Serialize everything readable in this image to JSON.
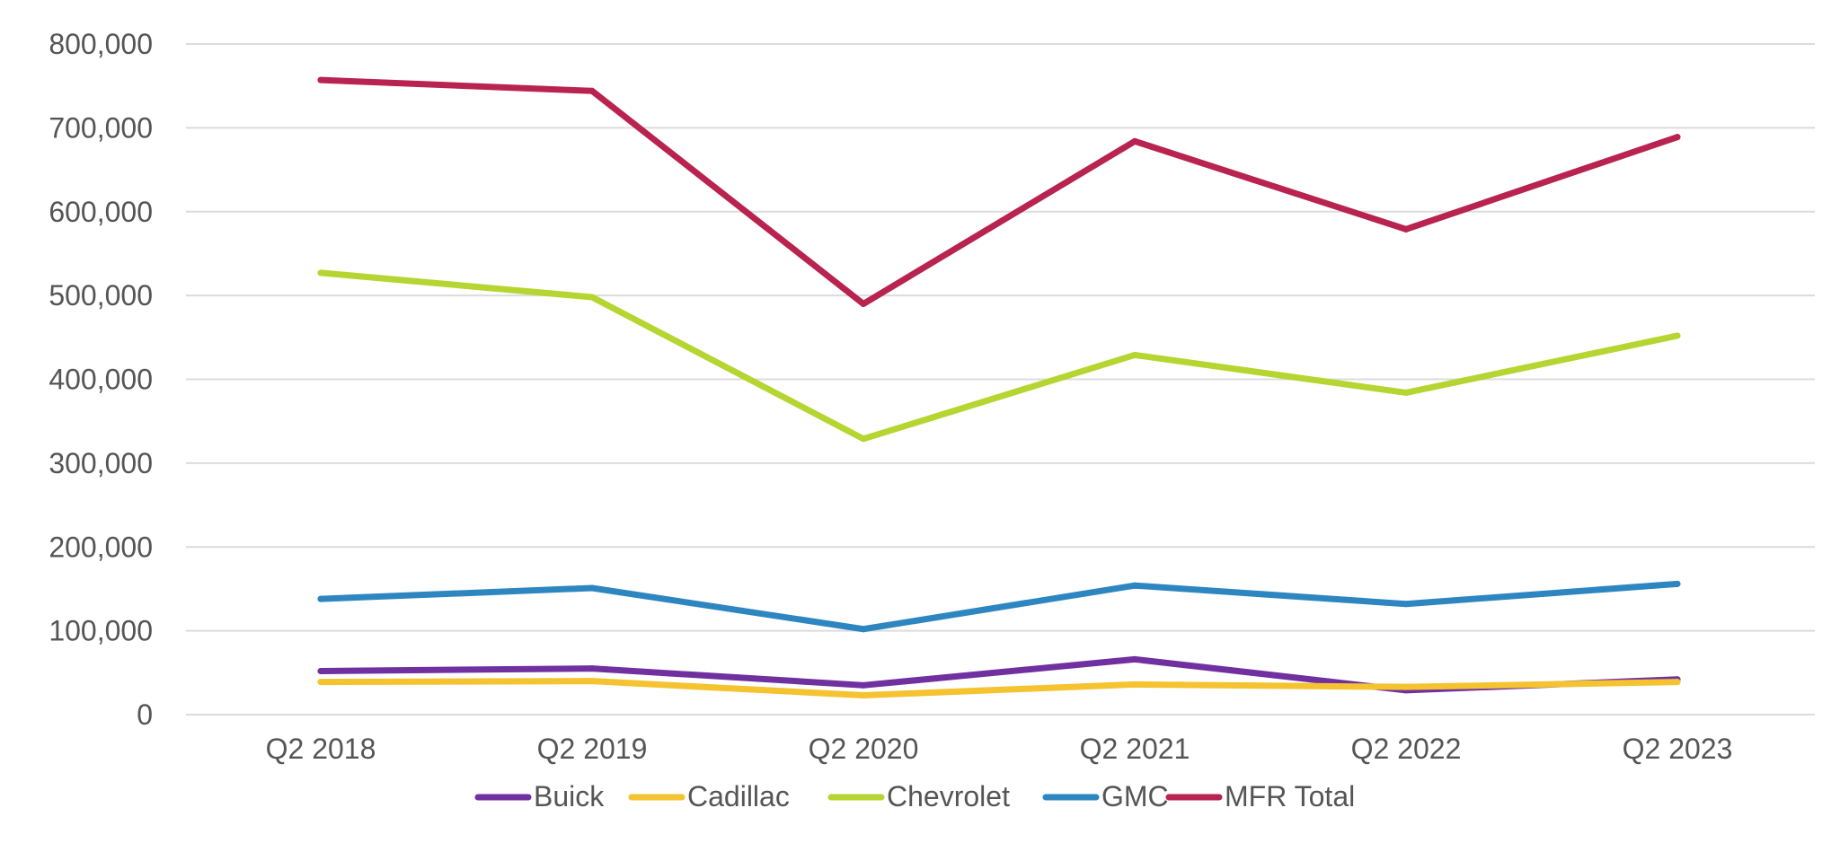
{
  "chart_data": {
    "type": "line",
    "categories": [
      "Q2 2018",
      "Q2 2019",
      "Q2 2020",
      "Q2 2021",
      "Q2 2022",
      "Q2 2023"
    ],
    "ylim": [
      0,
      800000
    ],
    "yticks": [
      0,
      100000,
      200000,
      300000,
      400000,
      500000,
      600000,
      700000,
      800000
    ],
    "ytick_labels": [
      "0",
      "100,000",
      "200,000",
      "300,000",
      "400,000",
      "500,000",
      "600,000",
      "700,000",
      "800,000"
    ],
    "grid": true,
    "legend_position": "bottom",
    "series": [
      {
        "name": "Buick",
        "color": "#7030a0",
        "values": [
          52000,
          55000,
          35000,
          66000,
          29000,
          42000
        ]
      },
      {
        "name": "Cadillac",
        "color": "#f5c230",
        "values": [
          39000,
          40000,
          23000,
          36000,
          33000,
          39000
        ]
      },
      {
        "name": "Chevrolet",
        "color": "#b5d531",
        "values": [
          527000,
          498000,
          329000,
          429000,
          384000,
          452000
        ]
      },
      {
        "name": "GMC",
        "color": "#2e86c1",
        "values": [
          138000,
          151000,
          102000,
          154000,
          132000,
          156000
        ]
      },
      {
        "name": "MFR Total",
        "color": "#b8234f",
        "values": [
          757000,
          744000,
          490000,
          684000,
          579000,
          689000
        ]
      }
    ]
  }
}
